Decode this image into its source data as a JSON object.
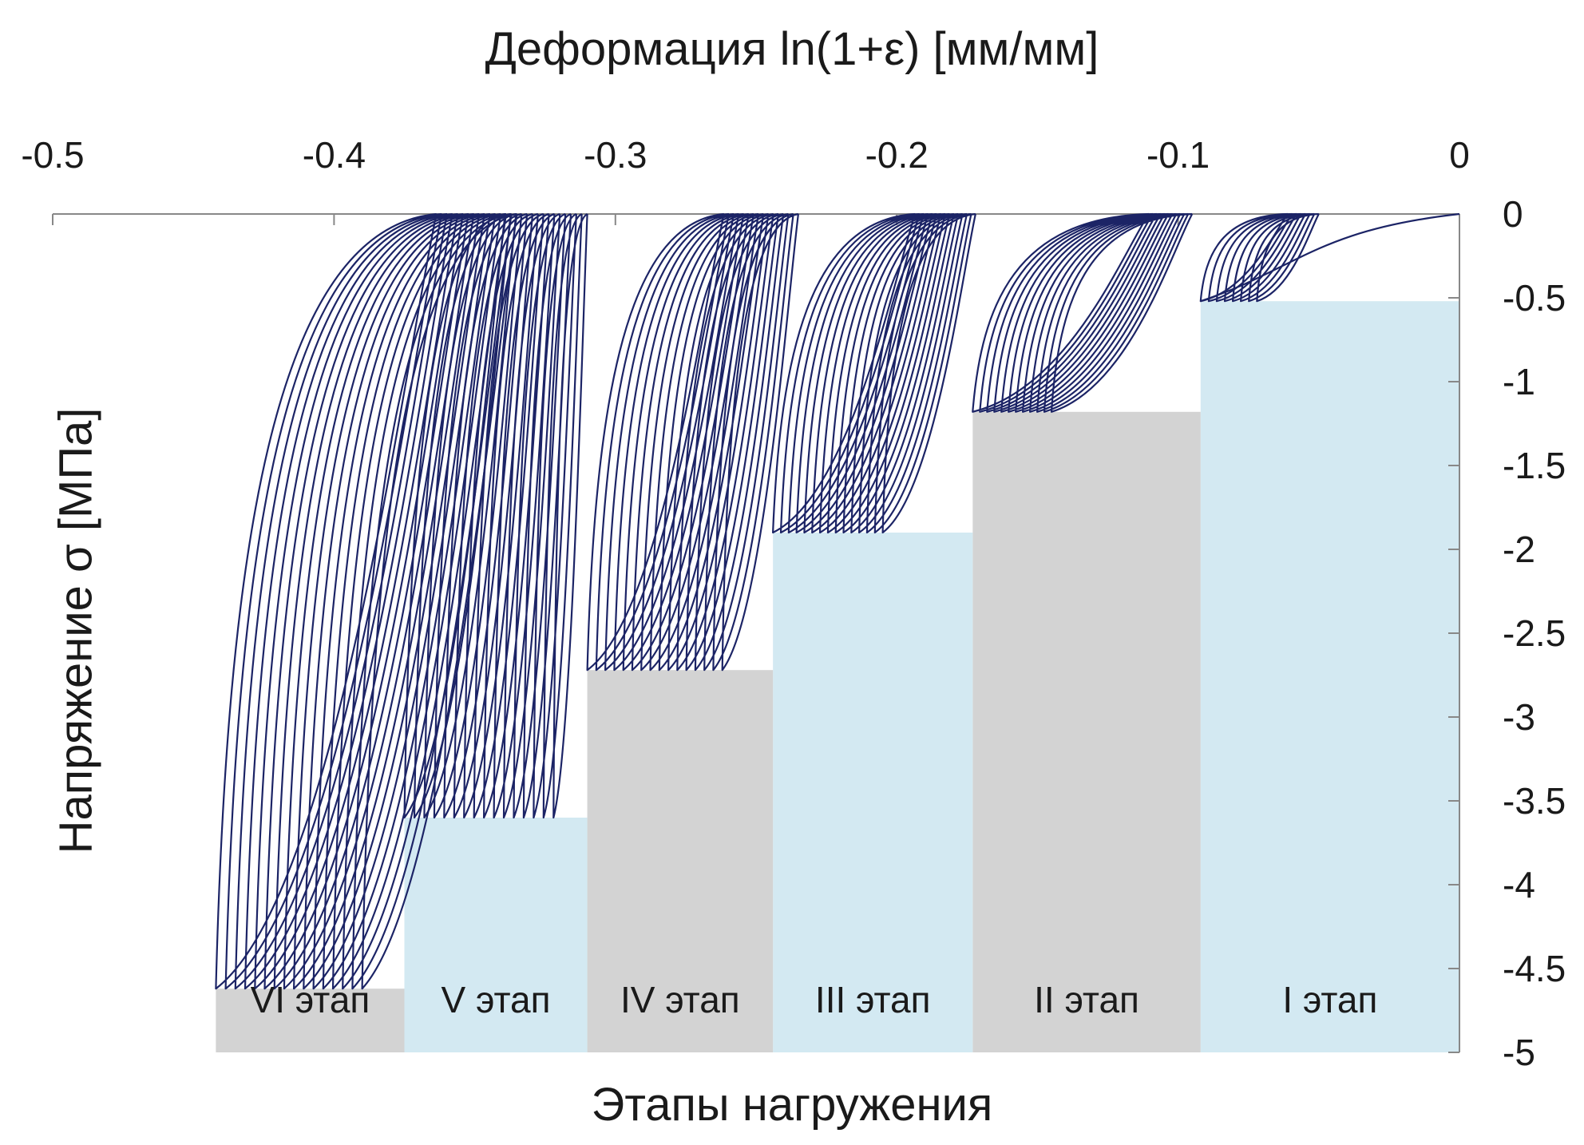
{
  "chart_data": {
    "type": "line",
    "xlabel": "Деформация ln(1+ε) [мм/мм]",
    "ylabel": "Напряжение σ [МПа]",
    "bottom_label": "Этапы нагружения",
    "xlim": [
      -0.5,
      0
    ],
    "ylim": [
      -5,
      0
    ],
    "x_axis_position": "top",
    "y_axis_position": "right",
    "x_ticks": [
      "-0.5",
      "-0.4",
      "-0.3",
      "-0.2",
      "-0.1",
      "0"
    ],
    "y_ticks": [
      "0",
      "-0.5",
      "-1",
      "-1.5",
      "-2",
      "-2.5",
      "-3",
      "-3.5",
      "-4",
      "-4.5",
      "-5"
    ],
    "line_color": "#1c2466",
    "stages": [
      {
        "label": "I этап",
        "x_start": -0.092,
        "x_end": 0.0,
        "stress": -0.52,
        "color": "#d3e9f2",
        "cycles": 8,
        "loop_x_min": -0.092,
        "loop_x_max": -0.072,
        "upper_reach_x": -0.05
      },
      {
        "label": "II этап",
        "x_start": -0.173,
        "x_end": -0.092,
        "stress": -1.18,
        "color": "#d3d3d3",
        "cycles": 12,
        "loop_x_min": -0.173,
        "loop_x_max": -0.145,
        "upper_reach_x": -0.095
      },
      {
        "label": "III этап",
        "x_start": -0.244,
        "x_end": -0.173,
        "stress": -1.9,
        "color": "#d3e9f2",
        "cycles": 15,
        "loop_x_min": -0.244,
        "loop_x_max": -0.205,
        "upper_reach_x": -0.172
      },
      {
        "label": "IV этап",
        "x_start": -0.31,
        "x_end": -0.244,
        "stress": -2.72,
        "color": "#d3d3d3",
        "cycles": 16,
        "loop_x_min": -0.31,
        "loop_x_max": -0.262,
        "upper_reach_x": -0.235
      },
      {
        "label": "V этап",
        "x_start": -0.375,
        "x_end": -0.31,
        "stress": -3.6,
        "color": "#d3e9f2",
        "cycles": 16,
        "loop_x_min": -0.375,
        "loop_x_max": -0.322,
        "upper_reach_x": -0.31
      },
      {
        "label": "VI этап",
        "x_start": -0.442,
        "x_end": -0.375,
        "stress": -4.62,
        "color": "#d3d3d3",
        "cycles": 16,
        "loop_x_min": -0.442,
        "loop_x_max": -0.39,
        "upper_reach_x": -0.335
      }
    ]
  }
}
